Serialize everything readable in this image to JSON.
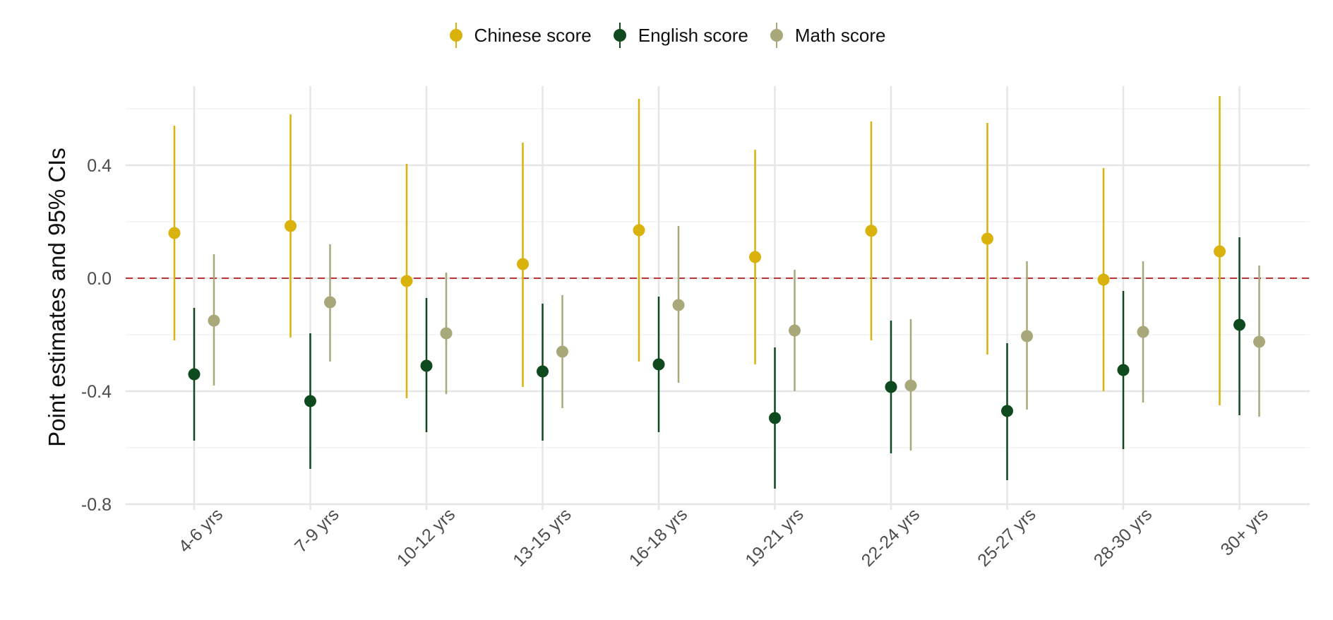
{
  "chart_data": {
    "type": "errorbar",
    "title": "",
    "xlabel": "",
    "ylabel": "Point estimates and 95% CIs",
    "ylim": [
      -0.8,
      0.6
    ],
    "yticks": [
      0.4,
      0.0,
      -0.4,
      -0.8
    ],
    "ytick_labels": [
      "0.4",
      "0.0",
      "-0.4",
      "-0.8"
    ],
    "reference_line": {
      "y": 0.0,
      "style": "dashed",
      "color": "#b5383a"
    },
    "grid": true,
    "legend_position": "top",
    "categories": [
      "4-6 yrs",
      "7-9 yrs",
      "10-12 yrs",
      "13-15 yrs",
      "16-18 yrs",
      "19-21 yrs",
      "22-24 yrs",
      "25-27 yrs",
      "28-30 yrs",
      "30+ yrs"
    ],
    "series": [
      {
        "name": "Chinese score",
        "color": "#d9b20c",
        "values": [
          0.16,
          0.185,
          -0.01,
          0.05,
          0.17,
          0.075,
          0.168,
          0.14,
          -0.005,
          0.095
        ],
        "lower": [
          -0.22,
          -0.21,
          -0.425,
          -0.385,
          -0.295,
          -0.305,
          -0.22,
          -0.27,
          -0.4,
          -0.45
        ],
        "upper": [
          0.54,
          0.58,
          0.405,
          0.48,
          0.635,
          0.455,
          0.555,
          0.55,
          0.39,
          0.645
        ]
      },
      {
        "name": "English score",
        "color": "#0e4a1e",
        "values": [
          -0.34,
          -0.435,
          -0.31,
          -0.33,
          -0.305,
          -0.495,
          -0.385,
          -0.47,
          -0.325,
          -0.165
        ],
        "lower": [
          -0.575,
          -0.675,
          -0.545,
          -0.575,
          -0.545,
          -0.745,
          -0.62,
          -0.715,
          -0.605,
          -0.485
        ],
        "upper": [
          -0.105,
          -0.195,
          -0.07,
          -0.09,
          -0.065,
          -0.245,
          -0.15,
          -0.23,
          -0.045,
          0.145
        ]
      },
      {
        "name": "Math score",
        "color": "#a8a87a",
        "values": [
          -0.15,
          -0.085,
          -0.195,
          -0.26,
          -0.095,
          -0.185,
          -0.38,
          -0.205,
          -0.19,
          -0.225
        ],
        "lower": [
          -0.38,
          -0.295,
          -0.41,
          -0.46,
          -0.37,
          -0.4,
          -0.61,
          -0.465,
          -0.44,
          -0.49
        ],
        "upper": [
          0.085,
          0.12,
          0.02,
          -0.06,
          0.185,
          0.03,
          -0.145,
          0.06,
          0.06,
          0.045
        ]
      }
    ]
  }
}
